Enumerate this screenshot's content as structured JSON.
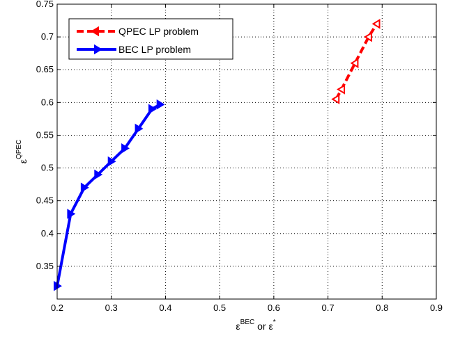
{
  "chart_data": {
    "type": "line",
    "xlabel": {
      "base": "ε",
      "sup": "BEC",
      "mid": " or ε",
      "sup2": "*"
    },
    "ylabel": {
      "base": "ε",
      "sup": "QPEC"
    },
    "xlim": [
      0.2,
      0.9
    ],
    "ylim": [
      0.3,
      0.75
    ],
    "xticks": [
      0.2,
      0.3,
      0.4,
      0.5,
      0.6,
      0.7,
      0.8,
      0.9
    ],
    "yticks": [
      0.35,
      0.4,
      0.45,
      0.5,
      0.55,
      0.6,
      0.65,
      0.7,
      0.75
    ],
    "xtick_labels": [
      "0.2",
      "0.3",
      "0.4",
      "0.5",
      "0.6",
      "0.7",
      "0.8",
      "0.9"
    ],
    "ytick_labels": [
      "0.35",
      "0.4",
      "0.45",
      "0.5",
      "0.55",
      "0.6",
      "0.65",
      "0.7",
      "0.75"
    ],
    "grid": true,
    "legend_position": "top-left",
    "series": [
      {
        "name": "QPEC LP problem",
        "color": "#ff0000",
        "line_style": "dashed",
        "marker": "left-triangle",
        "x": [
          0.715,
          0.725,
          0.75,
          0.775,
          0.79
        ],
        "y": [
          0.605,
          0.62,
          0.66,
          0.7,
          0.72
        ]
      },
      {
        "name": "BEC LP problem",
        "color": "#0000ff",
        "line_style": "solid",
        "marker": "right-triangle",
        "x": [
          0.2,
          0.225,
          0.25,
          0.275,
          0.3,
          0.325,
          0.35,
          0.375,
          0.39
        ],
        "y": [
          0.32,
          0.43,
          0.47,
          0.49,
          0.51,
          0.53,
          0.56,
          0.59,
          0.597
        ]
      }
    ]
  }
}
